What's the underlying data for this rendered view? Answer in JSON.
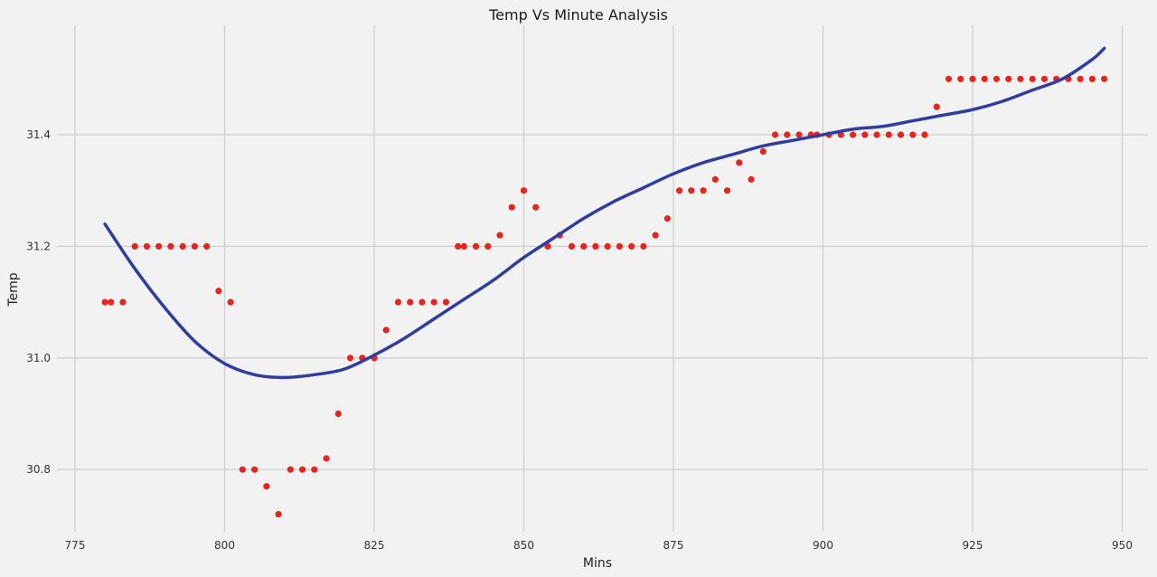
{
  "chart_data": {
    "type": "scatter",
    "title": "Temp Vs Minute Analysis",
    "xlabel": "Mins",
    "ylabel": "Temp",
    "xlim": [
      772,
      955
    ],
    "ylim": [
      30.69,
      31.57
    ],
    "xticks": [
      775,
      800,
      825,
      850,
      875,
      900,
      925,
      950
    ],
    "yticks": [
      30.8,
      31.0,
      31.2,
      31.4
    ],
    "ytick_labels": [
      "30.8",
      "31.0",
      "31.2",
      "31.4"
    ],
    "grid": true,
    "legend": null,
    "series": [
      {
        "name": "observed",
        "kind": "scatter",
        "color": "#e8241e",
        "points": [
          [
            780,
            31.1
          ],
          [
            781,
            31.1
          ],
          [
            783,
            31.1
          ],
          [
            785,
            31.2
          ],
          [
            787,
            31.2
          ],
          [
            789,
            31.2
          ],
          [
            791,
            31.2
          ],
          [
            793,
            31.2
          ],
          [
            795,
            31.2
          ],
          [
            797,
            31.2
          ],
          [
            799,
            31.12
          ],
          [
            801,
            31.1
          ],
          [
            803,
            30.8
          ],
          [
            805,
            30.8
          ],
          [
            807,
            30.77
          ],
          [
            809,
            30.72
          ],
          [
            811,
            30.8
          ],
          [
            813,
            30.8
          ],
          [
            815,
            30.8
          ],
          [
            817,
            30.82
          ],
          [
            819,
            30.9
          ],
          [
            821,
            31.0
          ],
          [
            823,
            31.0
          ],
          [
            825,
            31.0
          ],
          [
            827,
            31.05
          ],
          [
            829,
            31.1
          ],
          [
            831,
            31.1
          ],
          [
            833,
            31.1
          ],
          [
            835,
            31.1
          ],
          [
            837,
            31.1
          ],
          [
            839,
            31.2
          ],
          [
            840,
            31.2
          ],
          [
            842,
            31.2
          ],
          [
            844,
            31.2
          ],
          [
            846,
            31.22
          ],
          [
            848,
            31.27
          ],
          [
            850,
            31.3
          ],
          [
            852,
            31.27
          ],
          [
            854,
            31.2
          ],
          [
            856,
            31.22
          ],
          [
            858,
            31.2
          ],
          [
            860,
            31.2
          ],
          [
            862,
            31.2
          ],
          [
            864,
            31.2
          ],
          [
            866,
            31.2
          ],
          [
            868,
            31.2
          ],
          [
            870,
            31.2
          ],
          [
            872,
            31.22
          ],
          [
            874,
            31.25
          ],
          [
            876,
            31.3
          ],
          [
            878,
            31.3
          ],
          [
            880,
            31.3
          ],
          [
            882,
            31.32
          ],
          [
            884,
            31.3
          ],
          [
            886,
            31.35
          ],
          [
            888,
            31.32
          ],
          [
            890,
            31.37
          ],
          [
            892,
            31.4
          ],
          [
            894,
            31.4
          ],
          [
            896,
            31.4
          ],
          [
            898,
            31.4
          ],
          [
            899,
            31.4
          ],
          [
            901,
            31.4
          ],
          [
            903,
            31.4
          ],
          [
            905,
            31.4
          ],
          [
            907,
            31.4
          ],
          [
            909,
            31.4
          ],
          [
            911,
            31.4
          ],
          [
            913,
            31.4
          ],
          [
            915,
            31.4
          ],
          [
            917,
            31.4
          ],
          [
            919,
            31.45
          ],
          [
            921,
            31.5
          ],
          [
            923,
            31.5
          ],
          [
            925,
            31.5
          ],
          [
            927,
            31.5
          ],
          [
            929,
            31.5
          ],
          [
            931,
            31.5
          ],
          [
            933,
            31.5
          ],
          [
            935,
            31.5
          ],
          [
            937,
            31.5
          ],
          [
            939,
            31.5
          ],
          [
            941,
            31.5
          ],
          [
            943,
            31.5
          ],
          [
            945,
            31.5
          ],
          [
            947,
            31.5
          ]
        ]
      },
      {
        "name": "polynomial fit",
        "kind": "line",
        "color": "#2f3e9e",
        "points": [
          [
            780,
            31.24
          ],
          [
            785,
            31.16
          ],
          [
            790,
            31.09
          ],
          [
            795,
            31.03
          ],
          [
            800,
            30.99
          ],
          [
            805,
            30.97
          ],
          [
            810,
            30.965
          ],
          [
            815,
            30.97
          ],
          [
            820,
            30.98
          ],
          [
            825,
            31.005
          ],
          [
            830,
            31.035
          ],
          [
            835,
            31.07
          ],
          [
            840,
            31.105
          ],
          [
            845,
            31.14
          ],
          [
            850,
            31.18
          ],
          [
            855,
            31.215
          ],
          [
            860,
            31.25
          ],
          [
            865,
            31.28
          ],
          [
            870,
            31.305
          ],
          [
            875,
            31.33
          ],
          [
            880,
            31.35
          ],
          [
            885,
            31.365
          ],
          [
            890,
            31.38
          ],
          [
            895,
            31.39
          ],
          [
            900,
            31.4
          ],
          [
            905,
            31.41
          ],
          [
            910,
            31.415
          ],
          [
            915,
            31.425
          ],
          [
            920,
            31.435
          ],
          [
            925,
            31.445
          ],
          [
            930,
            31.46
          ],
          [
            935,
            31.48
          ],
          [
            940,
            31.5
          ],
          [
            945,
            31.535
          ],
          [
            947,
            31.555
          ]
        ]
      }
    ]
  }
}
